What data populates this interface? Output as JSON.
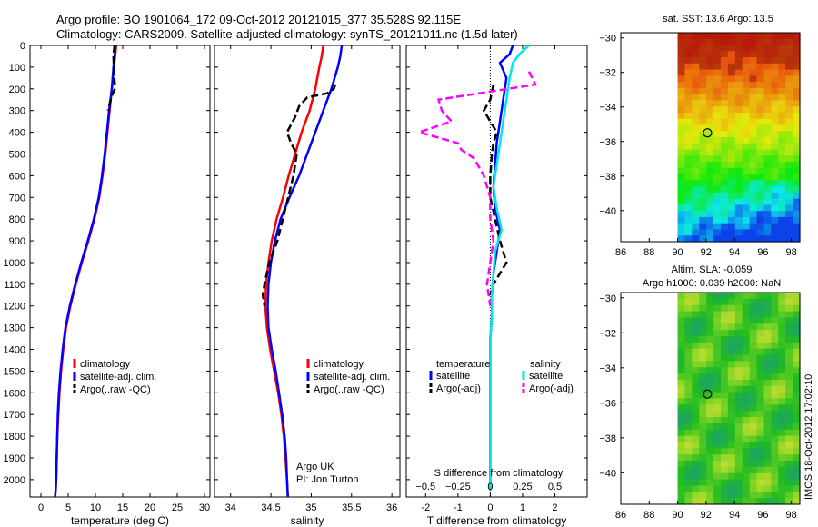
{
  "header": {
    "line1": "Argo profile: BO 1901064_172 09-Oct-2012 20121015_377 35.528S 92.115E",
    "line2": "Climatology: CARS2009. Satellite-adjusted climatology: synTS_20121011.nc (1.5d later)"
  },
  "footer": {
    "stamp": "IMOS 18-Oct-2012 17:02:10"
  },
  "colors": {
    "climatology": "#ff0000",
    "satellite": "#0000ff",
    "argo": "#000000",
    "satellite_salinity": "#00e5ee",
    "argo_salinity": "#ff00ff"
  },
  "chart_data": [
    {
      "type": "line",
      "id": "temperature",
      "xlabel": "temperature (deg C)",
      "xlim": [
        -2,
        31
      ],
      "ylim": [
        2080,
        0
      ],
      "xticks": [
        0,
        5,
        10,
        15,
        20,
        25,
        30
      ],
      "yticks": [
        0,
        100,
        200,
        300,
        400,
        500,
        600,
        700,
        800,
        900,
        1000,
        1100,
        1200,
        1300,
        1400,
        1500,
        1600,
        1700,
        1800,
        1900,
        2000
      ],
      "legend": [
        "climatology",
        "satellite-adj. clim.",
        "Argo(..raw -QC)"
      ],
      "series": [
        {
          "name": "climatology",
          "color": "#ff0000",
          "x": [
            13.8,
            13.6,
            13.4,
            13.0,
            12.6,
            12.2,
            11.8,
            11.3,
            10.7,
            9.8,
            8.7,
            7.5,
            6.4,
            5.4,
            4.6,
            4.1,
            3.7,
            3.4,
            3.2,
            3.0,
            2.9,
            2.8,
            2.7,
            2.6
          ],
          "y": [
            0,
            50,
            100,
            200,
            300,
            400,
            500,
            600,
            700,
            800,
            900,
            1000,
            1100,
            1200,
            1300,
            1400,
            1500,
            1600,
            1700,
            1800,
            1900,
            2000,
            2050,
            2080
          ]
        },
        {
          "name": "satellite-adj. clim.",
          "color": "#0000ff",
          "x": [
            13.7,
            13.5,
            13.3,
            13.0,
            12.5,
            12.1,
            11.7,
            11.2,
            10.6,
            9.7,
            8.6,
            7.4,
            6.3,
            5.3,
            4.5,
            4.0,
            3.6,
            3.3,
            3.1,
            3.0,
            2.9,
            2.8,
            2.7,
            2.6
          ],
          "y": [
            0,
            50,
            100,
            200,
            300,
            400,
            500,
            600,
            700,
            800,
            900,
            1000,
            1100,
            1200,
            1300,
            1400,
            1500,
            1600,
            1700,
            1800,
            1900,
            2000,
            2050,
            2080
          ]
        },
        {
          "name": "Argo(..raw -QC)",
          "color": "#000000",
          "dashed": true,
          "x": [
            13.5,
            13.3,
            13.4,
            13.6,
            13.2,
            12.8,
            12.3
          ],
          "y": [
            0,
            50,
            120,
            200,
            220,
            250,
            300
          ]
        }
      ]
    },
    {
      "type": "line",
      "id": "salinity",
      "xlabel": "salinity",
      "xlim": [
        33.8,
        36.1
      ],
      "ylim": [
        2080,
        0
      ],
      "xticks": [
        34,
        34.5,
        35,
        35.5,
        36
      ],
      "legend": [
        "climatology",
        "satellite-adj. clim.",
        "Argo(..raw -QC)"
      ],
      "annotation": [
        "Argo UK",
        "PI: Jon Turton"
      ],
      "series": [
        {
          "name": "climatology",
          "color": "#ff0000",
          "x": [
            35.15,
            35.13,
            35.1,
            35.05,
            34.98,
            34.88,
            34.8,
            34.72,
            34.65,
            34.57,
            34.51,
            34.47,
            34.44,
            34.43,
            34.45,
            34.49,
            34.54,
            34.59,
            34.63,
            34.66,
            34.68,
            34.7,
            34.71
          ],
          "y": [
            0,
            50,
            100,
            200,
            300,
            400,
            500,
            600,
            700,
            800,
            900,
            1000,
            1100,
            1200,
            1300,
            1400,
            1500,
            1600,
            1700,
            1800,
            1900,
            2000,
            2080
          ]
        },
        {
          "name": "satellite-adj. clim.",
          "color": "#0000ff",
          "x": [
            35.38,
            35.36,
            35.33,
            35.25,
            35.15,
            35.05,
            34.95,
            34.85,
            34.73,
            34.62,
            34.55,
            34.5,
            34.47,
            34.46,
            34.47,
            34.51,
            34.56,
            34.6,
            34.64,
            34.67,
            34.69,
            34.7,
            34.71
          ],
          "y": [
            0,
            50,
            100,
            200,
            300,
            400,
            500,
            600,
            700,
            800,
            900,
            1000,
            1100,
            1200,
            1300,
            1400,
            1500,
            1600,
            1700,
            1800,
            1900,
            2000,
            2080
          ]
        },
        {
          "name": "Argo(..raw -QC)",
          "color": "#000000",
          "dashed": true,
          "x": [
            35.3,
            35.28,
            35.2,
            34.95,
            34.85,
            34.8,
            34.7,
            34.75,
            34.82,
            34.78,
            34.68,
            34.58,
            34.48,
            34.42,
            34.4,
            34.42
          ],
          "y": [
            180,
            200,
            220,
            240,
            280,
            330,
            400,
            450,
            500,
            600,
            750,
            900,
            1000,
            1100,
            1150,
            1200
          ]
        }
      ]
    },
    {
      "type": "line",
      "id": "difference",
      "xlabel": "T difference from climatology",
      "xlabel_top": "S difference from climatology",
      "xlim": [
        -2.6,
        3.0
      ],
      "ylim": [
        2080,
        0
      ],
      "xticks": [
        -2,
        -1,
        0,
        1,
        2
      ],
      "xticks_s": [
        -0.5,
        -0.25,
        0,
        0.25,
        0.5
      ],
      "legend_headers": [
        "temperature",
        "salinity"
      ],
      "legend": [
        "satellite",
        "Argo(-adj)",
        "satellite",
        "Argo(-adj)"
      ],
      "series": [
        {
          "name": "satellite",
          "color": "#0000ff",
          "x": [
            0.7,
            0.6,
            0.3,
            0.5,
            0.4,
            0.3,
            0.2,
            0.15,
            0.1,
            0.15,
            0.3,
            0.2,
            0.1,
            0.05,
            0.05,
            0.0,
            0.0,
            0.0,
            0.0,
            0.0,
            0.0,
            0.0,
            0.0
          ],
          "y": [
            0,
            40,
            80,
            150,
            250,
            350,
            450,
            550,
            650,
            750,
            850,
            950,
            1050,
            1150,
            1250,
            1350,
            1450,
            1550,
            1650,
            1750,
            1850,
            1950,
            2050
          ]
        },
        {
          "name": "Argo(-adj)",
          "color": "#000000",
          "dashed": true,
          "x": [
            0.1,
            0.0,
            -0.2,
            0.0,
            0.2,
            0.1,
            0.05,
            0.0,
            0.0,
            0.3,
            0.5,
            0.3,
            0.1,
            0.0
          ],
          "y": [
            180,
            250,
            300,
            350,
            400,
            450,
            500,
            600,
            700,
            900,
            1000,
            1050,
            1100,
            1150
          ]
        },
        {
          "name": "satellite",
          "color": "#00e5ee",
          "x": [
            1.2,
            0.9,
            0.7,
            0.6,
            0.5,
            0.4,
            0.3,
            0.2,
            0.1,
            0.2,
            0.35,
            0.15,
            0.1,
            0.05,
            0.05,
            0.0,
            0.0,
            0.0,
            0.0,
            0.0,
            0.0,
            0.0,
            0.0
          ],
          "y": [
            0,
            40,
            80,
            150,
            250,
            350,
            450,
            550,
            650,
            750,
            850,
            950,
            1050,
            1150,
            1250,
            1350,
            1450,
            1550,
            1650,
            1750,
            1850,
            1950,
            2050
          ]
        },
        {
          "name": "Argo(-adj)",
          "color": "#ff00ff",
          "dashed": true,
          "x": [
            1.2,
            1.4,
            -1.6,
            -1.5,
            -1.2,
            -2.2,
            -1.0,
            -0.9,
            -0.5,
            -0.2,
            0.0,
            0.0,
            0.1,
            0.0,
            -0.1,
            0.0
          ],
          "y": [
            120,
            180,
            250,
            300,
            350,
            400,
            450,
            480,
            520,
            600,
            700,
            800,
            900,
            1000,
            1100,
            1200
          ]
        }
      ]
    },
    {
      "type": "heatmap",
      "id": "sst",
      "title": "sat. SST: 13.6  Argo: 13.5",
      "xlim": [
        86,
        98.6
      ],
      "ylim": [
        -41.8,
        -29.7
      ],
      "xticks": [
        86,
        88,
        90,
        92,
        94,
        96,
        98
      ],
      "yticks": [
        -30,
        -32,
        -34,
        -36,
        -38,
        -40
      ],
      "marker": {
        "x": 92.1,
        "y": -35.5
      },
      "data_x_start": 90
    },
    {
      "type": "heatmap",
      "id": "sla",
      "title": "Altim. SLA: -0.059",
      "subtitle": "Argo h1000: 0.039 h2000: NaN",
      "xlim": [
        86,
        98.6
      ],
      "ylim": [
        -41.8,
        -29.7
      ],
      "xticks": [
        86,
        88,
        90,
        92,
        94,
        96,
        98
      ],
      "yticks": [
        -30,
        -32,
        -34,
        -36,
        -38,
        -40
      ],
      "marker": {
        "x": 92.1,
        "y": -35.5
      },
      "data_x_start": 90
    }
  ]
}
